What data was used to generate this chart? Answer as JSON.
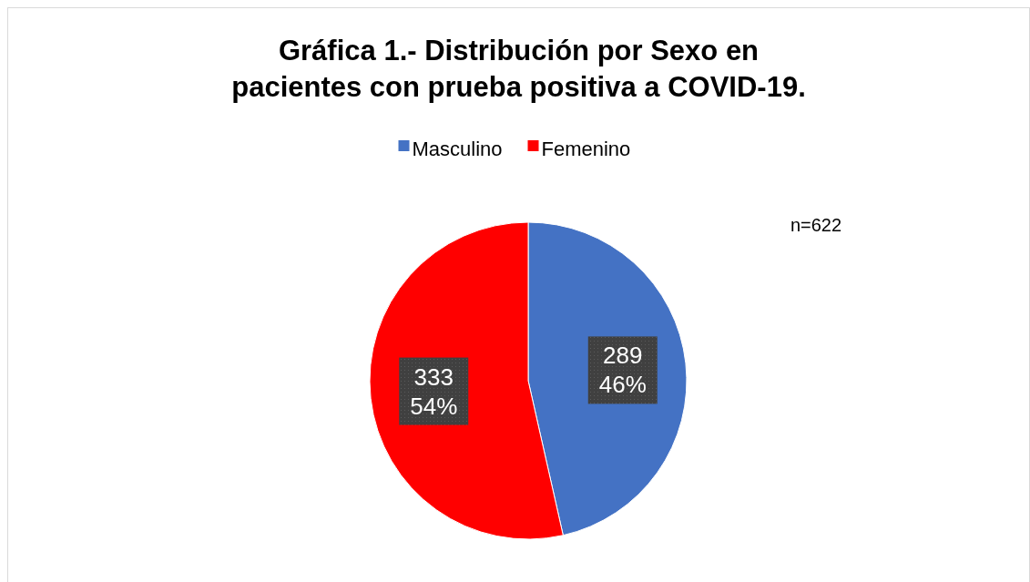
{
  "chart_data": {
    "type": "pie",
    "title": "Gráfica 1.- Distribución por Sexo en pacientes con prueba positiva a COVID-19.",
    "categories": [
      "Masculino",
      "Femenino"
    ],
    "values": [
      289,
      333
    ],
    "colors": [
      "#4472c4",
      "#ff0000"
    ],
    "value_labels": [
      "289\n46%",
      "333\n54%"
    ],
    "legend": "top",
    "annotations": [
      "n=622"
    ]
  }
}
